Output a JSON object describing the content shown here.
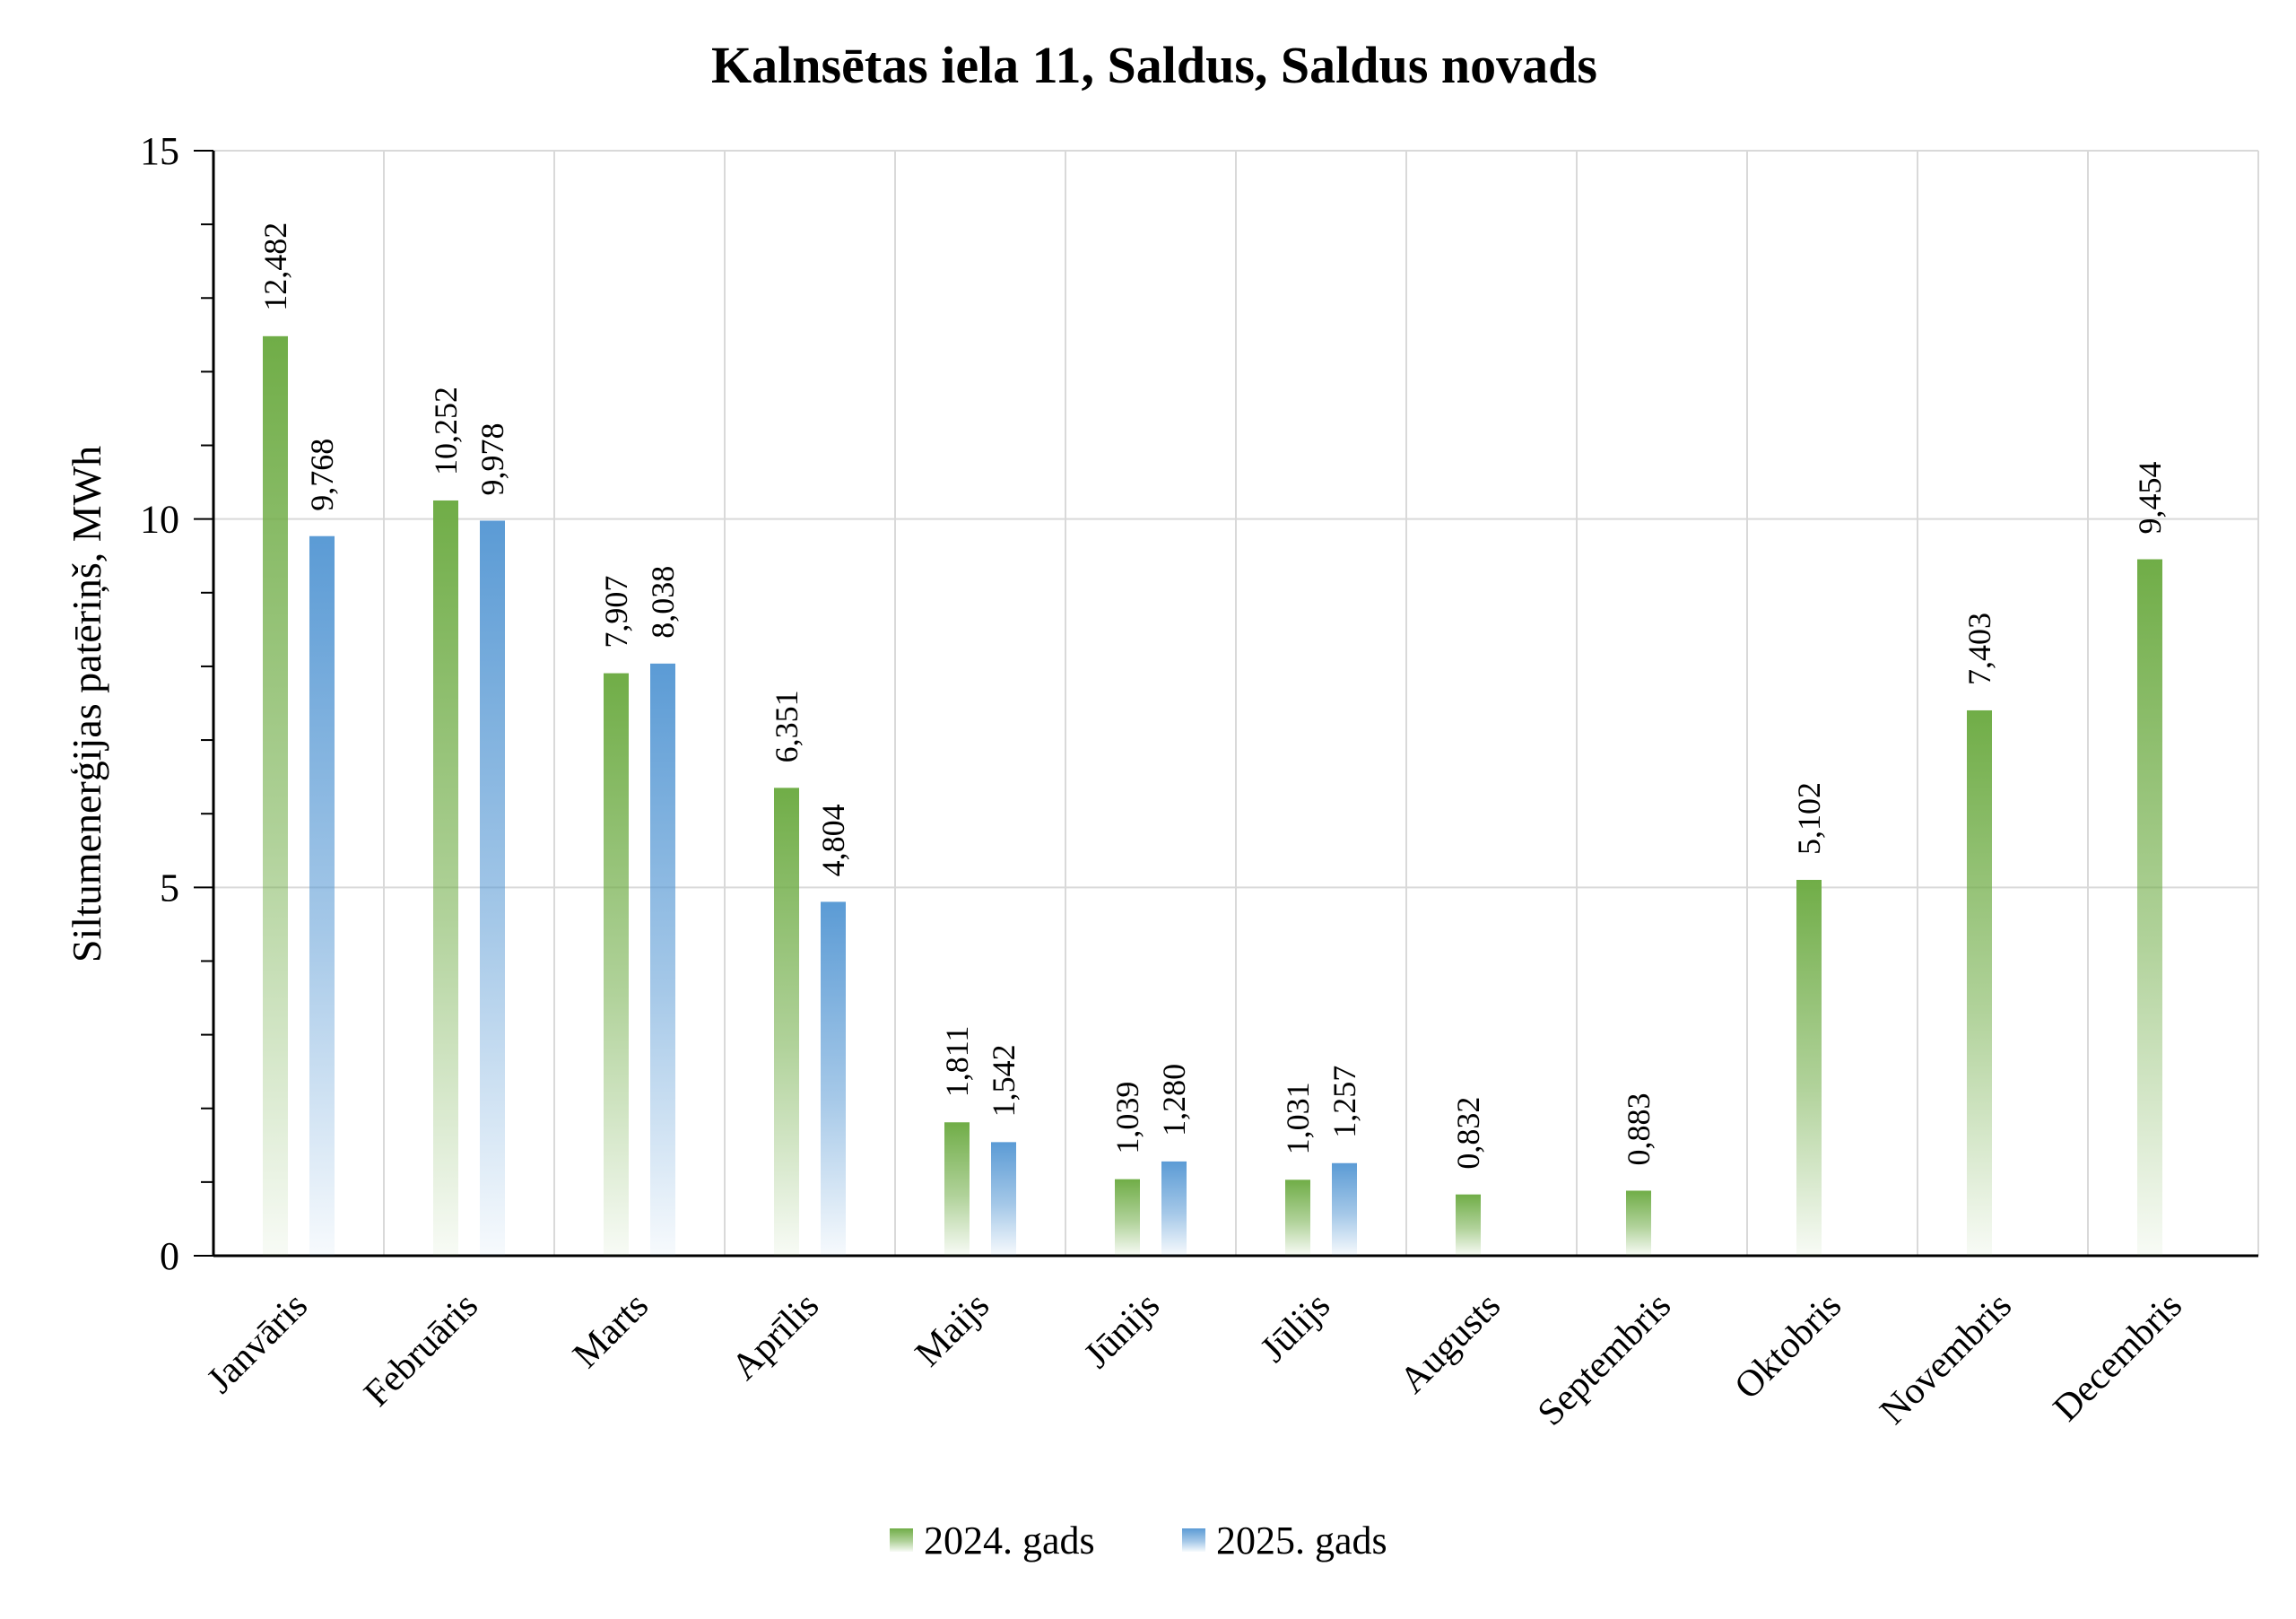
{
  "chart_data": {
    "type": "bar",
    "title": "Kalnsētas iela 11, Saldus, Saldus novads",
    "ylabel": "Siltumenerģijas patēriņš, MWh",
    "xlabel": "",
    "ylim": [
      0,
      15
    ],
    "yticks": [
      0,
      5,
      10,
      15
    ],
    "grid": true,
    "legend_position": "bottom",
    "categories": [
      "Janvāris",
      "Februāris",
      "Marts",
      "Aprīlis",
      "Maijs",
      "Jūnijs",
      "Jūlijs",
      "Augusts",
      "Septembris",
      "Oktobris",
      "Novembris",
      "Decembris"
    ],
    "series": [
      {
        "name": "2024. gads",
        "color": "#70ad47",
        "values": [
          12.482,
          10.252,
          7.907,
          6.351,
          1.811,
          1.039,
          1.031,
          0.832,
          0.883,
          5.102,
          7.403,
          9.454
        ],
        "labels": [
          "12,482",
          "10,252",
          "7,907",
          "6,351",
          "1,811",
          "1,039",
          "1,031",
          "0,832",
          "0,883",
          "5,102",
          "7,403",
          "9,454"
        ]
      },
      {
        "name": "2025. gads",
        "color": "#5b9bd5",
        "values": [
          9.768,
          9.978,
          8.038,
          4.804,
          1.542,
          1.28,
          1.257,
          null,
          null,
          null,
          null,
          null
        ],
        "labels": [
          "9,768",
          "9,978",
          "8,038",
          "4,804",
          "1,542",
          "1,280",
          "1,257",
          null,
          null,
          null,
          null,
          null
        ]
      }
    ]
  }
}
